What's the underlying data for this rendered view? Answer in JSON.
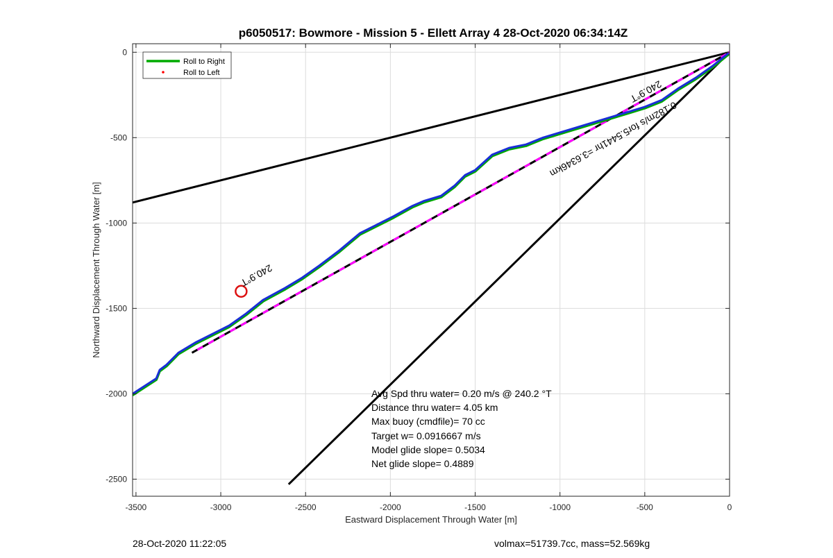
{
  "chart_data": {
    "type": "line",
    "title": "p6050517: Bowmore - Mission 5 - Ellett Array 4 28-Oct-2020 06:34:14Z",
    "xlabel": "Eastward Displacement Through Water [m]",
    "ylabel": "Northward Displacement Through Water [m]",
    "xlim": [
      -3520,
      0
    ],
    "ylim": [
      -2600,
      50
    ],
    "xticks": [
      -3500,
      -3000,
      -2500,
      -2000,
      -1500,
      -1000,
      -500,
      0
    ],
    "yticks": [
      0,
      -500,
      -1000,
      -1500,
      -2000,
      -2500
    ],
    "grid": true,
    "legend": {
      "location": "top-left",
      "entries": [
        {
          "label": "Roll to Right",
          "color": "#00aa00",
          "style": "line"
        },
        {
          "label": "Roll to Left",
          "color": "#ff0000",
          "style": "dot"
        }
      ]
    },
    "colors": {
      "track": "#1a2fd6",
      "roll_right": "#00aa00",
      "roll_left": "#ff0000",
      "dashed_black": "#000000",
      "dashed_magenta": "#ff00ff",
      "marker": "#dd1111",
      "bound": "#000000"
    },
    "series": [
      {
        "kind": "track",
        "x": [
          -3520,
          -3380,
          -3360,
          -3320,
          -3250,
          -3150,
          -3050,
          -2950,
          -2850,
          -2750,
          -2620,
          -2520,
          -2420,
          -2300,
          -2180,
          -2100,
          -1980,
          -1870,
          -1800,
          -1700,
          -1620,
          -1560,
          -1500,
          -1400,
          -1300,
          -1200,
          -1100,
          -1000,
          -900,
          -800,
          -700,
          -600,
          -500,
          -400,
          -300,
          -200,
          -100,
          0
        ],
        "y": [
          -2000,
          -1910,
          -1860,
          -1830,
          -1760,
          -1700,
          -1650,
          -1600,
          -1530,
          -1450,
          -1380,
          -1320,
          -1250,
          -1160,
          -1060,
          -1020,
          -960,
          -900,
          -870,
          -840,
          -780,
          -720,
          -690,
          -600,
          -560,
          -540,
          -500,
          -470,
          -440,
          -410,
          -380,
          -350,
          -320,
          -280,
          -210,
          -150,
          -80,
          0
        ]
      },
      {
        "kind": "dashed",
        "x": [
          -3170,
          0
        ],
        "y": [
          -1760,
          0
        ]
      },
      {
        "kind": "bound",
        "x": [
          -3520,
          0
        ],
        "y": [
          -880,
          0
        ]
      },
      {
        "kind": "bound",
        "x": [
          -2600,
          0
        ],
        "y": [
          -2530,
          0
        ]
      }
    ],
    "marker": {
      "x": -2880,
      "y": -1400
    },
    "annotations": {
      "dashed_label": "0.182m/s for5.5441hr =3.6346km",
      "heading_upper": "240.9°T",
      "heading_lower": "240.9°T",
      "stats": [
        "Avg Spd thru water=  0.20 m/s @ 240.2 °T",
        "Distance thru water=  4.05 km",
        "Max buoy (cmdfile)= 70 cc",
        "Target w= 0.0916667 m/s",
        "Model glide slope= 0.5034",
        "Net glide slope= 0.4889"
      ]
    }
  },
  "footer": {
    "timestamp": "28-Oct-2020 11:22:05",
    "summary": "volmax=51739.7cc, mass=52.569kg"
  }
}
